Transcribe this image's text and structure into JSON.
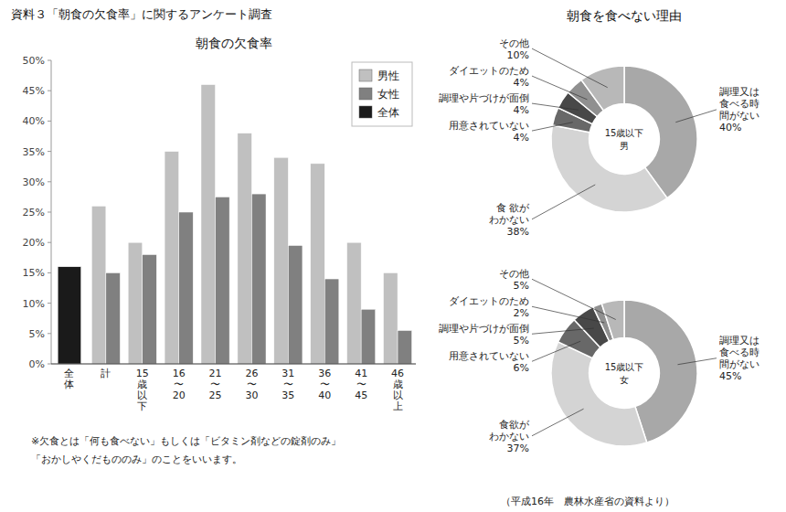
{
  "title": "資料３「朝食の欠食率」に関するアンケート調査",
  "chart_data": [
    {
      "type": "bar",
      "title": "朝食の欠食率",
      "categories": [
        "全\n体",
        "計",
        "15\n歳\n以\n下",
        "16\n〜\n20",
        "21\n〜\n25",
        "26\n〜\n30",
        "31\n〜\n35",
        "36\n〜\n40",
        "41\n〜\n45",
        "46\n歳\n以\n上"
      ],
      "series": [
        {
          "name": "男性",
          "color": "#c0c0c0",
          "values": [
            null,
            26,
            20,
            35,
            46,
            38,
            34,
            33,
            20,
            15
          ]
        },
        {
          "name": "女性",
          "color": "#808080",
          "values": [
            null,
            15,
            18,
            25,
            27.5,
            28,
            19.5,
            14,
            9,
            5.5
          ]
        },
        {
          "name": "全体",
          "color": "#1a1a1a",
          "values": [
            16,
            null,
            null,
            null,
            null,
            null,
            null,
            null,
            null,
            null
          ]
        }
      ],
      "ylim": [
        0,
        50
      ],
      "yticks": [
        {
          "value": 0,
          "label": "0%"
        },
        {
          "value": 5,
          "label": "5%"
        },
        {
          "value": 10,
          "label": "10%"
        },
        {
          "value": 15,
          "label": "15%"
        },
        {
          "value": 20,
          "label": "20%"
        },
        {
          "value": 25,
          "label": "25%"
        },
        {
          "value": 30,
          "label": "30%"
        },
        {
          "value": 35,
          "label": "35%"
        },
        {
          "value": 40,
          "label": "40%"
        },
        {
          "value": 45,
          "label": "45%"
        },
        {
          "value": 50,
          "label": "50%"
        }
      ],
      "grid": false,
      "legend": "upper right",
      "annotations": [
        "※欠食とは「何も食べない」もしくは「ビタミン剤などの錠剤のみ」",
        "「おかしやくだもののみ」のことをいいます。",
        "（平成16年　農林水産省の資料より）"
      ]
    },
    {
      "type": "pie",
      "title": "朝食を食べない理由",
      "subtitle": "15歳以下\n男",
      "categories": [
        "調理又は\n食べる時\n間がない",
        "食 欲が\nわかない",
        "用意されていない",
        "調理や片づけが面倒",
        "ダイエットのため",
        "その他"
      ],
      "values": [
        40,
        38,
        4,
        4,
        4,
        10
      ],
      "value_labels": [
        "40%",
        "38%",
        "4%",
        "4%",
        "4%",
        "10%"
      ],
      "colors": [
        "#a8a8a8",
        "#d4d4d4",
        "#686868",
        "#484848",
        "#909090",
        "#b8b8b8"
      ],
      "data_labels": true
    },
    {
      "type": "pie",
      "subtitle": "15歳以下\n女",
      "categories": [
        "調理又は\n食べる時\n間がない",
        "食欲が\nわかない",
        "用意されていない",
        "調理や片づけが面倒",
        "ダイエットのため",
        "その他"
      ],
      "values": [
        45,
        37,
        6,
        5,
        2,
        5
      ],
      "value_labels": [
        "45%",
        "37%",
        "6%",
        "5%",
        "2%",
        "5%"
      ],
      "colors": [
        "#a8a8a8",
        "#d4d4d4",
        "#686868",
        "#484848",
        "#909090",
        "#b8b8b8"
      ],
      "data_labels": true
    }
  ]
}
